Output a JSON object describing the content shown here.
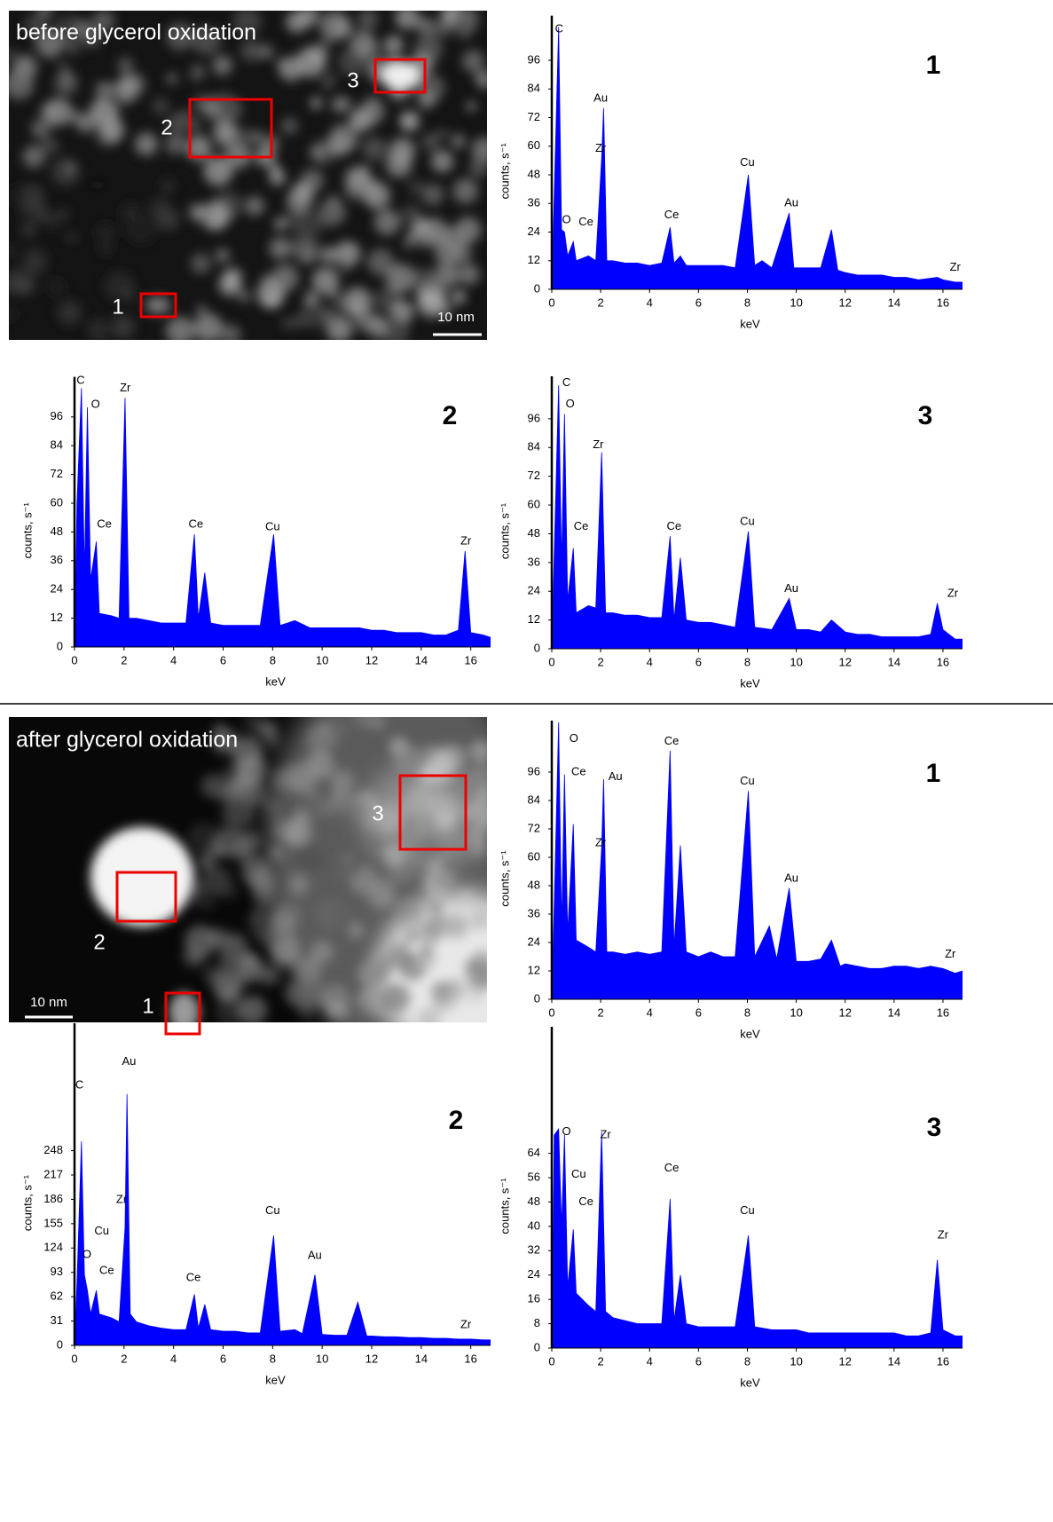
{
  "images": [
    {
      "title": "before glycerol oxidation",
      "scale_bar": "10 nm",
      "regions": [
        "1",
        "2",
        "3"
      ]
    },
    {
      "title": "after glycerol oxidation",
      "scale_bar": "10 nm",
      "regions": [
        "1",
        "2",
        "3"
      ]
    }
  ],
  "chart_data": [
    {
      "type": "area",
      "panel_label": "1",
      "x_label": "keV",
      "y_label": "counts, s⁻¹",
      "color": "#0000ff",
      "xlim": [
        0,
        16.8
      ],
      "xticks": [
        0,
        2,
        4,
        6,
        8,
        10,
        12,
        14,
        16
      ],
      "ylim": [
        0,
        114
      ],
      "yticks": [
        0,
        12,
        24,
        36,
        48,
        60,
        72,
        84,
        96
      ],
      "x": [
        0,
        0.1,
        0.28,
        0.4,
        0.52,
        0.65,
        0.88,
        1,
        1.5,
        1.8,
        2.04,
        2.12,
        2.25,
        2.5,
        3,
        3.5,
        4,
        4.5,
        4.84,
        5,
        5.26,
        5.5,
        6,
        6.5,
        7,
        7.5,
        8.04,
        8.3,
        8.6,
        9,
        9.71,
        9.9,
        10.5,
        11,
        11.44,
        11.7,
        12,
        12.5,
        13,
        13.5,
        14,
        14.5,
        15,
        15.77,
        16,
        16.5,
        16.8
      ],
      "values": [
        0,
        40,
        110,
        25,
        24,
        14,
        20,
        12,
        14,
        12,
        55,
        76,
        12,
        12,
        11,
        11,
        10,
        11,
        26,
        11,
        14,
        10,
        10,
        10,
        10,
        9,
        48,
        10,
        12,
        9,
        32,
        9,
        9,
        9,
        25,
        8,
        7,
        6,
        6,
        6,
        5,
        5,
        4,
        5,
        4,
        3,
        3
      ],
      "annotations": [
        {
          "text": "C",
          "x": 0.3,
          "y": 109
        },
        {
          "text": "O",
          "x": 0.6,
          "y": 29
        },
        {
          "text": "Ce",
          "x": 1.4,
          "y": 28
        },
        {
          "text": "Au",
          "x": 2.0,
          "y": 80
        },
        {
          "text": "Zr",
          "x": 2.0,
          "y": 59
        },
        {
          "text": "Ce",
          "x": 4.9,
          "y": 31
        },
        {
          "text": "Cu",
          "x": 8.0,
          "y": 53
        },
        {
          "text": "Au",
          "x": 9.8,
          "y": 36
        },
        {
          "text": "Zr",
          "x": 16.5,
          "y": 9
        }
      ]
    },
    {
      "type": "area",
      "panel_label": "2",
      "x_label": "keV",
      "y_label": "counts, s⁻¹",
      "color": "#0000ff",
      "xlim": [
        0,
        16.8
      ],
      "xticks": [
        0,
        2,
        4,
        6,
        8,
        10,
        12,
        14,
        16
      ],
      "ylim": [
        0,
        112
      ],
      "yticks": [
        0,
        12,
        24,
        36,
        48,
        60,
        72,
        84,
        96
      ],
      "x": [
        0,
        0.1,
        0.28,
        0.4,
        0.52,
        0.65,
        0.88,
        1,
        1.5,
        1.8,
        2.04,
        2.2,
        2.5,
        3,
        3.5,
        4,
        4.5,
        4.84,
        5,
        5.26,
        5.5,
        6,
        6.5,
        7,
        7.5,
        8.04,
        8.3,
        8.9,
        9.5,
        10,
        10.5,
        11,
        11.5,
        12,
        12.5,
        13,
        13.5,
        14,
        14.5,
        15,
        15.5,
        15.77,
        16,
        16.5,
        16.8
      ],
      "values": [
        0,
        60,
        108,
        30,
        100,
        28,
        44,
        14,
        13,
        12,
        104,
        12,
        12,
        11,
        10,
        10,
        10,
        47,
        12,
        31,
        10,
        9,
        9,
        9,
        9,
        47,
        9,
        11,
        8,
        8,
        8,
        8,
        8,
        7,
        7,
        6,
        6,
        6,
        5,
        5,
        7,
        40,
        6,
        5,
        4
      ],
      "annotations": [
        {
          "text": "C",
          "x": 0.25,
          "y": 111
        },
        {
          "text": "O",
          "x": 0.85,
          "y": 101
        },
        {
          "text": "Zr",
          "x": 2.05,
          "y": 108
        },
        {
          "text": "Ce",
          "x": 1.2,
          "y": 51
        },
        {
          "text": "Ce",
          "x": 4.9,
          "y": 51
        },
        {
          "text": "Cu",
          "x": 8.0,
          "y": 50
        },
        {
          "text": "Zr",
          "x": 15.8,
          "y": 44
        }
      ]
    },
    {
      "type": "area",
      "panel_label": "3",
      "x_label": "keV",
      "y_label": "counts, s⁻¹",
      "color": "#0000ff",
      "xlim": [
        0,
        16.8
      ],
      "xticks": [
        0,
        2,
        4,
        6,
        8,
        10,
        12,
        14,
        16
      ],
      "ylim": [
        0,
        113
      ],
      "yticks": [
        0,
        12,
        24,
        36,
        48,
        60,
        72,
        84,
        96
      ],
      "x": [
        0,
        0.1,
        0.28,
        0.4,
        0.52,
        0.65,
        0.88,
        1,
        1.5,
        1.8,
        2.04,
        2.2,
        2.5,
        3,
        3.5,
        4,
        4.5,
        4.84,
        5,
        5.26,
        5.5,
        6,
        6.5,
        7,
        7.5,
        8.04,
        8.3,
        9,
        9.71,
        10,
        10.5,
        11,
        11.44,
        12,
        12.5,
        13,
        13.5,
        14,
        14.5,
        15,
        15.5,
        15.77,
        16,
        16.5,
        16.8
      ],
      "values": [
        0,
        40,
        110,
        35,
        98,
        20,
        42,
        15,
        18,
        17,
        82,
        15,
        15,
        14,
        14,
        13,
        13,
        47,
        12,
        38,
        12,
        11,
        11,
        10,
        9,
        49,
        9,
        8,
        21,
        8,
        8,
        7,
        12,
        7,
        6,
        6,
        5,
        5,
        5,
        5,
        6,
        19,
        8,
        4,
        4
      ],
      "annotations": [
        {
          "text": "C",
          "x": 0.6,
          "y": 111
        },
        {
          "text": "O",
          "x": 0.75,
          "y": 102
        },
        {
          "text": "Zr",
          "x": 1.9,
          "y": 85
        },
        {
          "text": "Ce",
          "x": 1.2,
          "y": 51
        },
        {
          "text": "Ce",
          "x": 5.0,
          "y": 51
        },
        {
          "text": "Cu",
          "x": 8.0,
          "y": 53
        },
        {
          "text": "Au",
          "x": 9.8,
          "y": 25
        },
        {
          "text": "Zr",
          "x": 16.4,
          "y": 23
        }
      ]
    },
    {
      "type": "area",
      "panel_label": "1",
      "x_label": "keV",
      "y_label": "counts, s⁻¹",
      "color": "#0000ff",
      "xlim": [
        0,
        16.8
      ],
      "xticks": [
        0,
        2,
        4,
        6,
        8,
        10,
        12,
        14,
        16
      ],
      "ylim": [
        0,
        117
      ],
      "yticks": [
        0,
        12,
        24,
        36,
        48,
        60,
        72,
        84,
        96
      ],
      "x": [
        0,
        0.1,
        0.28,
        0.4,
        0.52,
        0.65,
        0.88,
        1,
        1.5,
        1.8,
        2.04,
        2.12,
        2.25,
        2.5,
        3,
        3.5,
        4,
        4.5,
        4.84,
        5,
        5.26,
        5.5,
        6,
        6.5,
        7,
        7.5,
        8.04,
        8.3,
        8.9,
        9.2,
        9.71,
        10,
        10.5,
        11,
        11.44,
        11.8,
        12,
        12.5,
        13,
        13.5,
        14,
        14.5,
        15,
        15.5,
        16,
        16.5,
        16.8
      ],
      "values": [
        0,
        40,
        117,
        30,
        95,
        28,
        74,
        25,
        22,
        20,
        64,
        93,
        20,
        20,
        19,
        20,
        19,
        20,
        105,
        22,
        65,
        20,
        18,
        20,
        18,
        18,
        88,
        18,
        31,
        17,
        47,
        16,
        16,
        17,
        25,
        14,
        15,
        14,
        13,
        13,
        14,
        14,
        13,
        14,
        13,
        11,
        12
      ],
      "annotations": [
        {
          "text": "O",
          "x": 0.9,
          "y": 110
        },
        {
          "text": "Ce",
          "x": 1.1,
          "y": 96
        },
        {
          "text": "Au",
          "x": 2.6,
          "y": 94
        },
        {
          "text": "Zr",
          "x": 2.0,
          "y": 66
        },
        {
          "text": "Ce",
          "x": 4.9,
          "y": 109
        },
        {
          "text": "Cu",
          "x": 8.0,
          "y": 92
        },
        {
          "text": "Au",
          "x": 9.8,
          "y": 51
        },
        {
          "text": "Zr",
          "x": 16.3,
          "y": 19
        }
      ]
    },
    {
      "type": "area",
      "panel_label": "2",
      "x_label": "keV",
      "y_label": "counts, s⁻¹",
      "color": "#0000ff",
      "xlim": [
        0,
        16.8
      ],
      "xticks": [
        0,
        2,
        4,
        6,
        8,
        10,
        12,
        14,
        16
      ],
      "ylim": [
        0,
        408
      ],
      "yticks": [
        0,
        31,
        62,
        93,
        124,
        155,
        186,
        217,
        248
      ],
      "x": [
        0,
        0.1,
        0.28,
        0.4,
        0.52,
        0.65,
        0.88,
        1,
        1.5,
        1.8,
        2.04,
        2.12,
        2.25,
        2.5,
        3,
        3.5,
        4,
        4.5,
        4.84,
        5,
        5.26,
        5.5,
        6,
        6.5,
        7,
        7.5,
        8.04,
        8.3,
        8.9,
        9.2,
        9.71,
        10,
        10.5,
        11,
        11.44,
        11.8,
        12,
        12.5,
        13,
        13.5,
        14,
        14.5,
        15,
        15.5,
        16,
        16.5,
        16.8
      ],
      "values": [
        0,
        80,
        260,
        90,
        70,
        40,
        70,
        40,
        35,
        30,
        150,
        320,
        40,
        30,
        25,
        22,
        20,
        20,
        65,
        22,
        52,
        20,
        18,
        18,
        16,
        16,
        140,
        18,
        20,
        15,
        90,
        14,
        13,
        13,
        55,
        12,
        12,
        11,
        11,
        10,
        10,
        9,
        9,
        8,
        8,
        7,
        7
      ],
      "annotations": [
        {
          "text": "C",
          "x": 0.2,
          "y": 331
        },
        {
          "text": "Au",
          "x": 2.2,
          "y": 361
        },
        {
          "text": "Zr",
          "x": 1.9,
          "y": 185
        },
        {
          "text": "Cu",
          "x": 1.1,
          "y": 145
        },
        {
          "text": "O",
          "x": 0.5,
          "y": 115
        },
        {
          "text": "Ce",
          "x": 1.3,
          "y": 95
        },
        {
          "text": "Ce",
          "x": 4.8,
          "y": 86
        },
        {
          "text": "Cu",
          "x": 8.0,
          "y": 171
        },
        {
          "text": "Au",
          "x": 9.7,
          "y": 114
        },
        {
          "text": "Zr",
          "x": 15.8,
          "y": 26
        }
      ]
    },
    {
      "type": "area",
      "panel_label": "3",
      "x_label": "keV",
      "y_label": "counts, s⁻¹",
      "color": "#0000ff",
      "xlim": [
        0,
        16.8
      ],
      "xticks": [
        0,
        2,
        4,
        6,
        8,
        10,
        12,
        14,
        16
      ],
      "ylim": [
        0,
        105
      ],
      "yticks": [
        0,
        8,
        16,
        24,
        32,
        40,
        48,
        56,
        64
      ],
      "x": [
        0,
        0.1,
        0.28,
        0.4,
        0.52,
        0.65,
        0.88,
        1,
        1.5,
        1.8,
        2.04,
        2.2,
        2.5,
        3,
        3.5,
        4,
        4.5,
        4.84,
        5,
        5.26,
        5.5,
        6,
        6.5,
        7,
        7.5,
        8.04,
        8.3,
        9,
        9.5,
        10,
        10.5,
        11,
        11.5,
        12,
        12.5,
        13,
        13.5,
        14,
        14.5,
        15,
        15.5,
        15.77,
        16,
        16.5,
        16.8
      ],
      "values": [
        0,
        70,
        72,
        40,
        70,
        20,
        39,
        18,
        14,
        12,
        71,
        12,
        10,
        9,
        8,
        8,
        8,
        49,
        9,
        24,
        8,
        7,
        7,
        7,
        7,
        37,
        7,
        6,
        6,
        6,
        5,
        5,
        5,
        5,
        5,
        5,
        5,
        5,
        4,
        4,
        5,
        29,
        6,
        4,
        4
      ],
      "annotations": [
        {
          "text": "O",
          "x": 0.6,
          "y": 71
        },
        {
          "text": "Zr",
          "x": 2.2,
          "y": 70
        },
        {
          "text": "Cu",
          "x": 1.1,
          "y": 57
        },
        {
          "text": "Ce",
          "x": 1.4,
          "y": 48
        },
        {
          "text": "Ce",
          "x": 4.9,
          "y": 59
        },
        {
          "text": "Cu",
          "x": 8.0,
          "y": 45
        },
        {
          "text": "Zr",
          "x": 16.0,
          "y": 37
        }
      ]
    }
  ]
}
